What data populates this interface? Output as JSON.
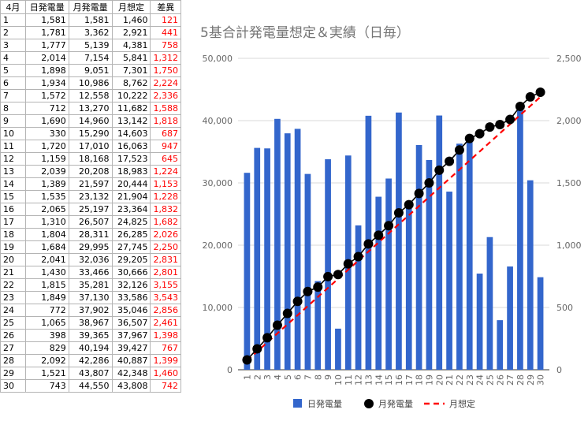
{
  "sheet": {
    "headers": [
      "4月",
      "日発電量",
      "月発電量",
      "月想定",
      "差異"
    ],
    "rows": [
      [
        "1",
        "1,581",
        "1,581",
        "1,460",
        "121"
      ],
      [
        "2",
        "1,781",
        "3,362",
        "2,921",
        "441"
      ],
      [
        "3",
        "1,777",
        "5,139",
        "4,381",
        "758"
      ],
      [
        "4",
        "2,014",
        "7,154",
        "5,841",
        "1,312"
      ],
      [
        "5",
        "1,898",
        "9,051",
        "7,301",
        "1,750"
      ],
      [
        "6",
        "1,934",
        "10,986",
        "8,762",
        "2,224"
      ],
      [
        "7",
        "1,572",
        "12,558",
        "10,222",
        "2,336"
      ],
      [
        "8",
        "712",
        "13,270",
        "11,682",
        "1,588"
      ],
      [
        "9",
        "1,690",
        "14,960",
        "13,142",
        "1,818"
      ],
      [
        "10",
        "330",
        "15,290",
        "14,603",
        "687"
      ],
      [
        "11",
        "1,720",
        "17,010",
        "16,063",
        "947"
      ],
      [
        "12",
        "1,159",
        "18,168",
        "17,523",
        "645"
      ],
      [
        "13",
        "2,039",
        "20,208",
        "18,983",
        "1,224"
      ],
      [
        "14",
        "1,389",
        "21,597",
        "20,444",
        "1,153"
      ],
      [
        "15",
        "1,535",
        "23,132",
        "21,904",
        "1,228"
      ],
      [
        "16",
        "2,065",
        "25,197",
        "23,364",
        "1,832"
      ],
      [
        "17",
        "1,310",
        "26,507",
        "24,825",
        "1,682"
      ],
      [
        "18",
        "1,804",
        "28,311",
        "26,285",
        "2,026"
      ],
      [
        "19",
        "1,684",
        "29,995",
        "27,745",
        "2,250"
      ],
      [
        "20",
        "2,041",
        "32,036",
        "29,205",
        "2,831"
      ],
      [
        "21",
        "1,430",
        "33,466",
        "30,666",
        "2,801"
      ],
      [
        "22",
        "1,815",
        "35,281",
        "32,126",
        "3,155"
      ],
      [
        "23",
        "1,849",
        "37,130",
        "33,586",
        "3,543"
      ],
      [
        "24",
        "772",
        "37,902",
        "35,046",
        "2,856"
      ],
      [
        "25",
        "1,065",
        "38,967",
        "36,507",
        "2,461"
      ],
      [
        "26",
        "398",
        "39,365",
        "37,967",
        "1,398"
      ],
      [
        "27",
        "829",
        "40,194",
        "39,427",
        "767"
      ],
      [
        "28",
        "2,092",
        "42,286",
        "40,887",
        "1,399"
      ],
      [
        "29",
        "1,521",
        "43,807",
        "42,348",
        "1,460"
      ],
      [
        "30",
        "743",
        "44,550",
        "43,808",
        "742"
      ]
    ]
  },
  "chart_data": {
    "type": "bar",
    "title": "5基合計発電量想定＆実績（日毎）",
    "categories": [
      "1",
      "2",
      "3",
      "4",
      "5",
      "6",
      "7",
      "8",
      "9",
      "10",
      "11",
      "12",
      "13",
      "14",
      "15",
      "16",
      "17",
      "18",
      "19",
      "20",
      "21",
      "22",
      "23",
      "24",
      "25",
      "26",
      "27",
      "28",
      "29",
      "30"
    ],
    "left_axis": {
      "ylim": [
        0,
        50000
      ],
      "ticks": [
        "0",
        "10,000",
        "20,000",
        "30,000",
        "40,000",
        "50,000"
      ]
    },
    "right_axis": {
      "ylim": [
        0,
        2500
      ],
      "ticks": [
        "0",
        "500",
        "1,000",
        "1,500",
        "2,000",
        "2,500"
      ]
    },
    "grid": true,
    "legend_position": "bottom",
    "colors": {
      "bar": "#3366cc",
      "line": "#000000",
      "dash": "#ff0000"
    },
    "series": [
      {
        "name": "日発電量",
        "type": "bar",
        "axis": "right",
        "values": [
          1581,
          1781,
          1777,
          2014,
          1898,
          1934,
          1572,
          712,
          1690,
          330,
          1720,
          1159,
          2039,
          1389,
          1535,
          2065,
          1310,
          1804,
          1684,
          2041,
          1430,
          1815,
          1849,
          772,
          1065,
          398,
          829,
          2092,
          1521,
          743
        ]
      },
      {
        "name": "月発電量",
        "type": "line-markers",
        "axis": "left",
        "values": [
          1581,
          3362,
          5139,
          7154,
          9051,
          10986,
          12558,
          13270,
          14960,
          15290,
          17010,
          18168,
          20208,
          21597,
          23132,
          25197,
          26507,
          28311,
          29995,
          32036,
          33466,
          35281,
          37130,
          37902,
          38967,
          39365,
          40194,
          42286,
          43807,
          44550
        ]
      },
      {
        "name": "月想定",
        "type": "dashed-line",
        "axis": "left",
        "values": [
          1460,
          2921,
          4381,
          5841,
          7301,
          8762,
          10222,
          11682,
          13142,
          14603,
          16063,
          17523,
          18983,
          20444,
          21904,
          23364,
          24825,
          26285,
          27745,
          29205,
          30666,
          32126,
          33586,
          35046,
          36507,
          37967,
          39427,
          40887,
          42348,
          43808
        ]
      }
    ]
  }
}
